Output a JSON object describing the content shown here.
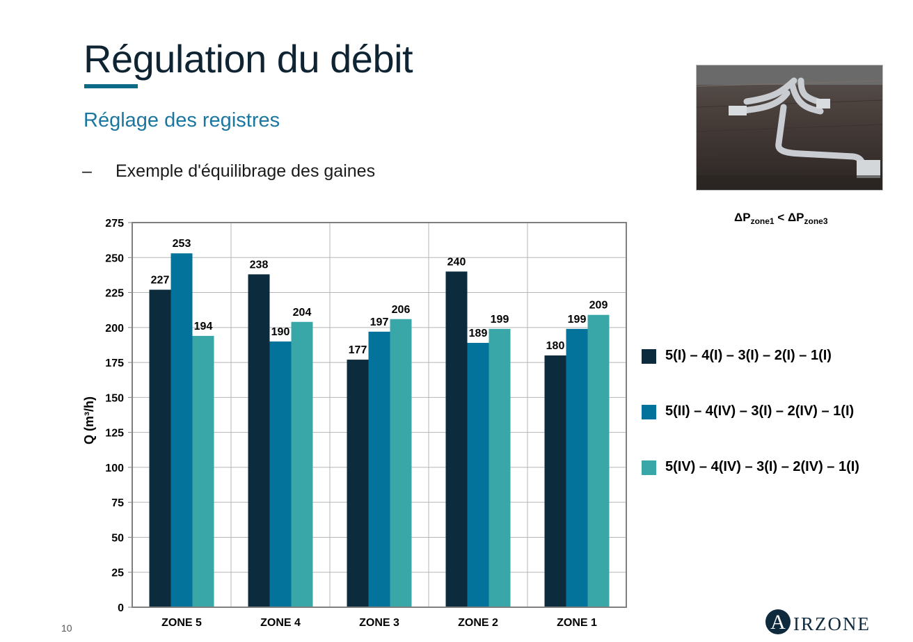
{
  "slide": {
    "title": "Régulation du débit",
    "subtitle": "Réglage des registres",
    "bullet_dash": "–",
    "bullet_text": "Exemple d'équilibrage des gaines",
    "page_number": "10",
    "delta_p": {
      "delta": "ΔP",
      "sub1": "zone1",
      "op": " < ",
      "sub2": "zone3"
    },
    "logo": {
      "initial": "A",
      "text": "IRZONE"
    },
    "photo_icon": "ductwork-photo"
  },
  "chart_data": {
    "type": "bar",
    "categories": [
      "ZONE 5",
      "ZONE 4",
      "ZONE 3",
      "ZONE 2",
      "ZONE 1"
    ],
    "series": [
      {
        "name": "5(I) – 4(I) – 3(I) – 2(I) – 1(I)",
        "color": "#0c2b3c",
        "values": [
          227,
          238,
          177,
          240,
          180
        ]
      },
      {
        "name": "5(II) – 4(IV) – 3(I) – 2(IV) – 1(I)",
        "color": "#03739b",
        "values": [
          253,
          190,
          197,
          189,
          199
        ]
      },
      {
        "name": "5(IV) – 4(IV) – 3(I) – 2(IV) – 1(I)",
        "color": "#39a7a8",
        "values": [
          194,
          204,
          206,
          199,
          209
        ]
      }
    ],
    "ylabel": "Q (m³/h)",
    "xlabel": "",
    "ylim": [
      0,
      275
    ],
    "yticks": [
      0,
      25,
      50,
      75,
      100,
      125,
      150,
      175,
      200,
      225,
      250,
      275
    ],
    "grid": true,
    "legend": "right",
    "data_labels": true
  }
}
